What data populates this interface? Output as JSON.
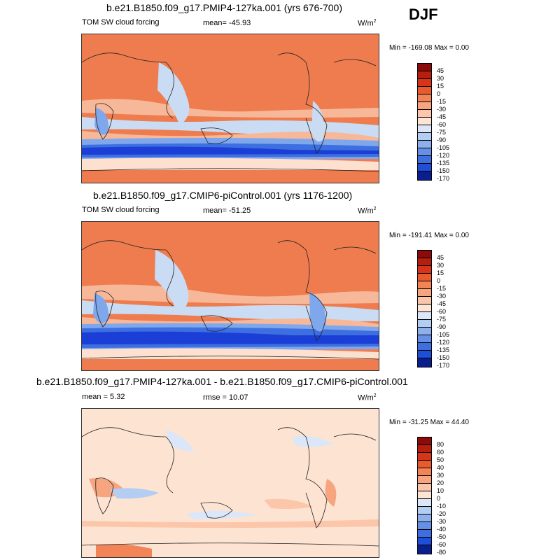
{
  "season": "DJF",
  "colors": {
    "land_orange": "#ee7c4e",
    "ocean_light": "#f7b89a",
    "neutral": "#fde0cf",
    "blue_light": "#c9dcf4",
    "blue_mid": "#7fa8ec",
    "blue_strong": "#3d6fe0",
    "blue_deep": "#1b3fd6",
    "diff_base": "#fde3d2"
  },
  "panels": [
    {
      "title": "b.e21.B1850.f09_g17.PMIP4-127ka.001 (yrs 676-700)",
      "left_label": "TOM SW cloud forcing",
      "mean_label": "mean= -45.93",
      "units": "W/m",
      "units_sup": "2",
      "minmax": "Min = -169.08 Max =   0.00",
      "colorbar": [
        "45",
        "30",
        "15",
        "0",
        "-15",
        "-30",
        "-45",
        "-60",
        "-75",
        "-90",
        "-105",
        "-120",
        "-135",
        "-150",
        "-170"
      ]
    },
    {
      "title": "b.e21.B1850.f09_g17.CMIP6-piControl.001 (yrs 1176-1200)",
      "left_label": "TOM SW cloud forcing",
      "mean_label": "mean= -51.25",
      "units": "W/m",
      "units_sup": "2",
      "minmax": "Min = -191.41 Max =   0.00",
      "colorbar": [
        "45",
        "30",
        "15",
        "0",
        "-15",
        "-30",
        "-45",
        "-60",
        "-75",
        "-90",
        "-105",
        "-120",
        "-135",
        "-150",
        "-170"
      ]
    },
    {
      "title": "b.e21.B1850.f09_g17.PMIP4-127ka.001 - b.e21.B1850.f09_g17.CMIP6-piControl.001",
      "left_label": "mean =   5.32",
      "mean_label": "rmse =  10.07",
      "units": "W/m",
      "units_sup": "2",
      "minmax": "Min = -31.25 Max =  44.40",
      "colorbar": [
        "80",
        "60",
        "50",
        "40",
        "30",
        "20",
        "10",
        "0",
        "-10",
        "-20",
        "-30",
        "-40",
        "-50",
        "-60",
        "-80"
      ]
    }
  ]
}
